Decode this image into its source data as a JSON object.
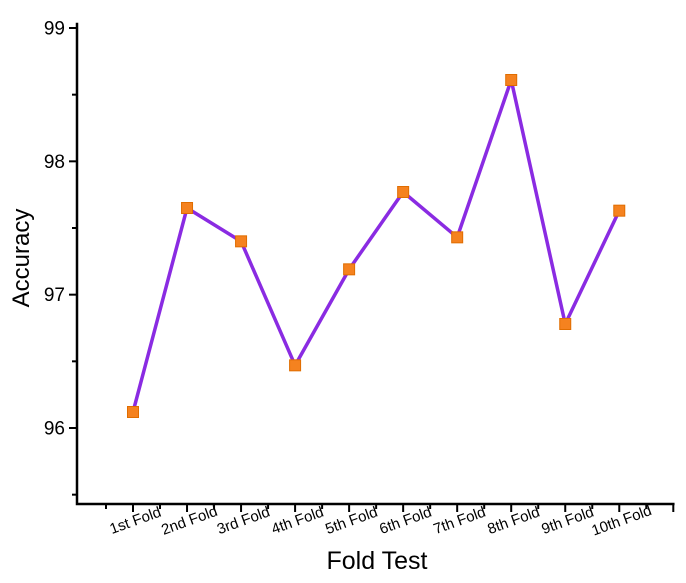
{
  "chart_data": {
    "type": "line",
    "title": "",
    "xlabel": "Fold Test",
    "ylabel": "Accuracy",
    "categories": [
      "1st Fold",
      "2nd Fold",
      "3rd Fold",
      "4th Fold",
      "5th Fold",
      "6th Fold",
      "7th Fold",
      "8th Fold",
      "9th Fold",
      "10th Fold"
    ],
    "series": [
      {
        "name": "Accuracy",
        "values": [
          96.12,
          97.65,
          97.4,
          96.47,
          97.19,
          97.77,
          97.43,
          98.61,
          96.78,
          97.63
        ]
      }
    ],
    "ylim": [
      95.43,
      99
    ],
    "yticks": [
      96,
      97,
      98,
      99
    ],
    "y_minor_step": 0.5,
    "x_minor_ticks": true,
    "grid": false,
    "legend": "none",
    "x_label_angle_deg": -20,
    "styles": {
      "line_color": "#8A2BE2",
      "line_width": 3.5,
      "marker_shape": "square",
      "marker_color": "#F5821F",
      "marker_edge_color": "#E06D00",
      "marker_size": 11,
      "axis_color": "#000000",
      "background": "#ffffff"
    }
  }
}
